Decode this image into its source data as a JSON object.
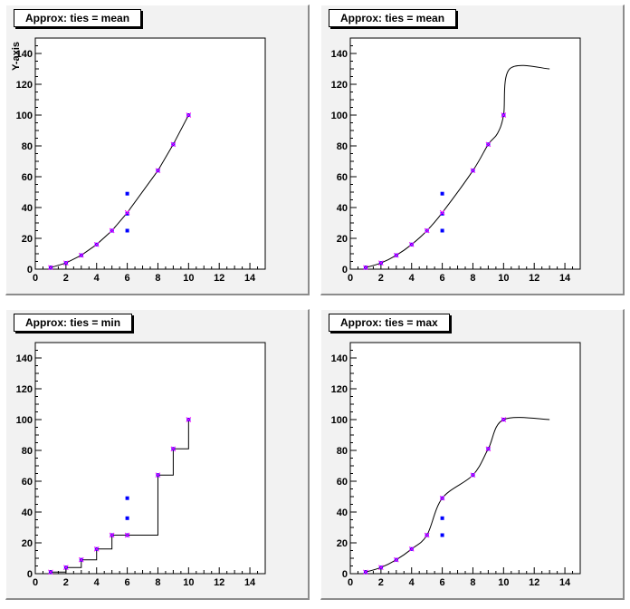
{
  "chart_data": [
    {
      "type": "scatter",
      "title": "Approx: ties = mean",
      "ylabel": "Y-axis",
      "xlim": [
        0,
        15
      ],
      "ylim": [
        0,
        150
      ],
      "xticks": [
        0,
        2,
        4,
        6,
        8,
        10,
        12,
        14
      ],
      "yticks": [
        0,
        20,
        40,
        60,
        80,
        100,
        120,
        140
      ],
      "points": {
        "x": [
          1,
          2,
          3,
          4,
          5,
          6,
          6,
          6,
          8,
          9,
          10
        ],
        "y": [
          1,
          4,
          9,
          16,
          25,
          25,
          36,
          49,
          64,
          81,
          100
        ]
      },
      "approx": {
        "x": [
          1,
          2,
          3,
          4,
          5,
          6,
          8,
          9,
          10
        ],
        "y": [
          1,
          4,
          9,
          16,
          25,
          36.67,
          64,
          81,
          100
        ]
      },
      "curve": {
        "kind": "linear",
        "x": [
          1,
          2,
          3,
          4,
          5,
          6,
          8,
          9,
          10
        ],
        "y": [
          1,
          4,
          9,
          16,
          25,
          36.67,
          64,
          81,
          100
        ]
      }
    },
    {
      "type": "scatter",
      "title": "Approx: ties = mean",
      "xlim": [
        0,
        15
      ],
      "ylim": [
        0,
        150
      ],
      "xticks": [
        0,
        2,
        4,
        6,
        8,
        10,
        12,
        14
      ],
      "yticks": [
        0,
        20,
        40,
        60,
        80,
        100,
        120,
        140
      ],
      "points": {
        "x": [
          1,
          2,
          3,
          4,
          5,
          6,
          6,
          6,
          8,
          9,
          10
        ],
        "y": [
          1,
          4,
          9,
          16,
          25,
          25,
          36,
          49,
          64,
          81,
          100
        ]
      },
      "approx": {
        "x": [
          1,
          2,
          3,
          4,
          5,
          6,
          8,
          9,
          10
        ],
        "y": [
          1,
          4,
          9,
          16,
          25,
          36.67,
          64,
          81,
          100
        ]
      },
      "curve": {
        "kind": "smooth",
        "x": [
          1,
          2,
          3,
          4,
          5,
          6,
          8,
          9,
          9.6,
          10,
          10.4,
          13
        ],
        "y": [
          1,
          4,
          9,
          16,
          25,
          36.67,
          64,
          81,
          88,
          100,
          130,
          130
        ]
      }
    },
    {
      "type": "scatter",
      "title": "Approx: ties = min",
      "xlim": [
        0,
        15
      ],
      "ylim": [
        0,
        150
      ],
      "xticks": [
        0,
        2,
        4,
        6,
        8,
        10,
        12,
        14
      ],
      "yticks": [
        0,
        20,
        40,
        60,
        80,
        100,
        120,
        140
      ],
      "points": {
        "x": [
          1,
          2,
          3,
          4,
          5,
          6,
          6,
          6,
          8,
          9,
          10
        ],
        "y": [
          1,
          4,
          9,
          16,
          25,
          25,
          36,
          49,
          64,
          81,
          100
        ]
      },
      "approx": {
        "x": [
          1,
          2,
          3,
          4,
          5,
          6,
          8,
          9,
          10
        ],
        "y": [
          1,
          4,
          9,
          16,
          25,
          25,
          64,
          81,
          100
        ]
      },
      "curve": {
        "kind": "step",
        "x": [
          1,
          2,
          3,
          4,
          5,
          6,
          8,
          9,
          10
        ],
        "y": [
          1,
          4,
          9,
          16,
          25,
          25,
          64,
          81,
          100
        ]
      }
    },
    {
      "type": "scatter",
      "title": "Approx: ties = max",
      "xlim": [
        0,
        15
      ],
      "ylim": [
        0,
        150
      ],
      "xticks": [
        0,
        2,
        4,
        6,
        8,
        10,
        12,
        14
      ],
      "yticks": [
        0,
        20,
        40,
        60,
        80,
        100,
        120,
        140
      ],
      "points": {
        "x": [
          1,
          2,
          3,
          4,
          5,
          6,
          6,
          6,
          8,
          9,
          10
        ],
        "y": [
          1,
          4,
          9,
          16,
          25,
          25,
          36,
          49,
          64,
          81,
          100
        ]
      },
      "approx": {
        "x": [
          1,
          2,
          3,
          4,
          5,
          6,
          8,
          9,
          10
        ],
        "y": [
          1,
          4,
          9,
          16,
          25,
          49,
          64,
          81,
          100
        ]
      },
      "curve": {
        "kind": "smooth",
        "x": [
          1,
          2,
          3,
          4,
          5,
          6,
          8,
          9,
          10,
          13
        ],
        "y": [
          1,
          4,
          9,
          16,
          25,
          49,
          64,
          81,
          100,
          100
        ]
      }
    }
  ],
  "colors": {
    "points": "#0000ff",
    "approx": "#ff00ff",
    "curve": "#000000"
  }
}
